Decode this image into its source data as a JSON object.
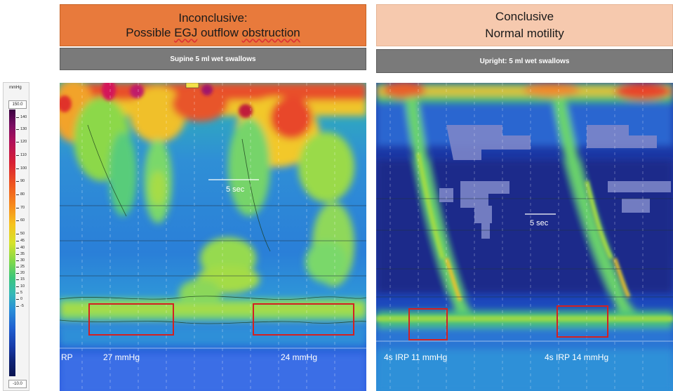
{
  "left_panel": {
    "title_line1": "Inconclusive:",
    "title_line2_a": "Possible ",
    "title_line2_b": "EGJ",
    "title_line2_c": " outflow ",
    "title_line2_d": "obstruction",
    "subtitle": "Supine 5 ml wet swallows",
    "time_scale": "5 sec",
    "measurement_prefix": "RP",
    "measurement_1": "27 mmHg",
    "measurement_2": "24 mmHg"
  },
  "right_panel": {
    "title_line1": "Conclusive",
    "title_line2": "Normal motility",
    "subtitle": "Upright: 5 ml wet swallows",
    "time_scale": "5 sec",
    "measurement_1": "4s IRP 11 mmHg",
    "measurement_2": "4s IRP 14 mmHg"
  },
  "color_scale": {
    "unit": "mmHg",
    "max": "150.0",
    "min": "-10.0",
    "ticks": [
      "140",
      "130",
      "120",
      "110",
      "100",
      "90",
      "80",
      "70",
      "60",
      "50",
      "45",
      "40",
      "35",
      "30",
      "25",
      "20",
      "15",
      "10",
      "5",
      "0",
      "-5"
    ]
  },
  "colors": {
    "highlight_box": "#d42020",
    "left_title_bg": "#e87a3c",
    "right_title_bg": "#f6c9ae",
    "subtitle_bg": "#7a7a7a"
  }
}
